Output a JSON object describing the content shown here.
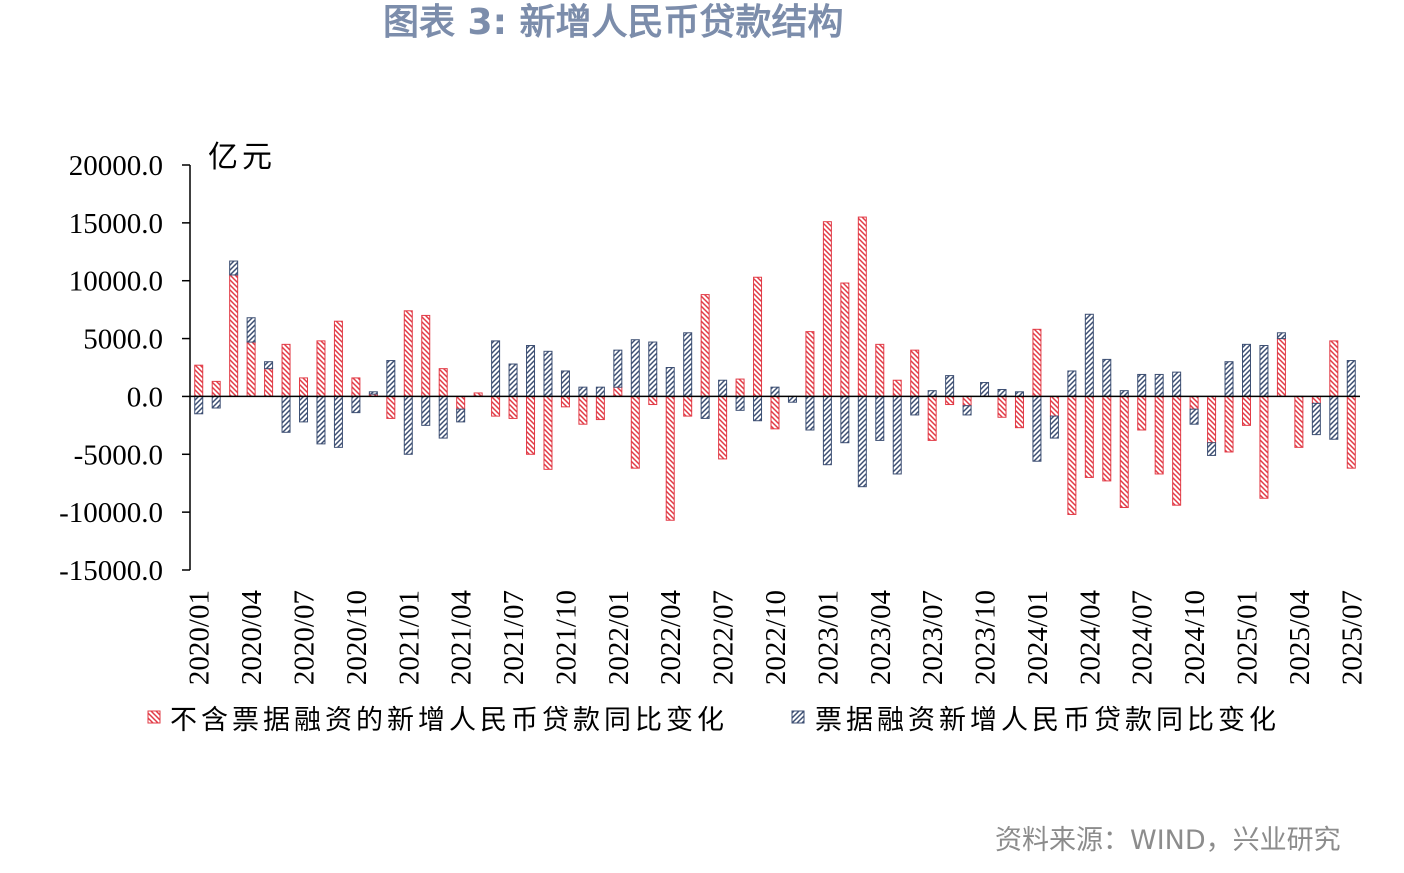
{
  "chart_data": {
    "type": "bar",
    "stacked": true,
    "title": "图表 3: 新增人民币贷款结构",
    "title_color": "#7c8dab",
    "ylabel": "亿元",
    "ylim": [
      -15000,
      20000
    ],
    "yticks": [
      "20000.0",
      "15000.0",
      "10000.0",
      "5000.0",
      "0.0",
      "-5000.0",
      "-10000.0",
      "-15000.0"
    ],
    "grid": false,
    "legend": "bottom",
    "categories": [
      "2020/01",
      "",
      "",
      "2020/04",
      "",
      "",
      "2020/07",
      "",
      "",
      "2020/10",
      "",
      "",
      "2021/01",
      "",
      "",
      "2021/04",
      "",
      "",
      "2021/07",
      "",
      "",
      "2021/10",
      "",
      "",
      "2022/01",
      "",
      "",
      "2022/04",
      "",
      "",
      "2022/07",
      "",
      "",
      "2022/10",
      "",
      "",
      "2023/01",
      "",
      "",
      "2023/04",
      "",
      "",
      "2023/07",
      "",
      "",
      "2023/10",
      "",
      "",
      "2024/01",
      "",
      "",
      "2024/04",
      "",
      "",
      "2024/07",
      "",
      "",
      "2024/10",
      "",
      "",
      "2025/01",
      "",
      "",
      "2025/04",
      "",
      "",
      "2025/07"
    ],
    "series": [
      {
        "name": "不含票据融资的新增人民币贷款同比变化",
        "color": "#e23b46",
        "values": [
          2700,
          1300,
          10500,
          4700,
          2400,
          4500,
          1600,
          4800,
          6500,
          1600,
          200,
          -1900,
          7400,
          7000,
          2400,
          -1100,
          300,
          -1700,
          -1900,
          -5000,
          -6300,
          -900,
          -2400,
          -2000,
          800,
          -6200,
          -700,
          -10700,
          -1700,
          8800,
          -5400,
          1500,
          10300,
          -2800,
          0,
          5600,
          15100,
          9800,
          15500,
          4500,
          1400,
          4000,
          -3800,
          -700,
          -800,
          0,
          -1800,
          -2700,
          5800,
          -1700,
          -10200,
          -7000,
          -7300,
          -9600,
          -2900,
          -6700,
          -9400,
          -1100,
          -4000,
          -4800,
          -2500,
          -8800,
          5000,
          -4400,
          -600,
          4800,
          -6200
        ]
      },
      {
        "name": "票据融资新增人民币贷款同比变化",
        "color": "#3d4f73",
        "values": [
          -1500,
          -1000,
          1200,
          2100,
          600,
          -3100,
          -2200,
          -4100,
          -4400,
          -1400,
          200,
          3100,
          -5000,
          -2500,
          -3600,
          -1100,
          0,
          4800,
          2800,
          4400,
          3900,
          2200,
          800,
          800,
          3200,
          4900,
          4700,
          2500,
          5500,
          -1900,
          1400,
          -1200,
          -2100,
          800,
          -500,
          -2900,
          -5900,
          -4000,
          -7800,
          -3800,
          -6700,
          -1600,
          500,
          1800,
          -800,
          1200,
          600,
          400,
          -5600,
          -1900,
          2200,
          7100,
          3200,
          500,
          1900,
          1900,
          2100,
          -1300,
          -1100,
          3000,
          4500,
          4400,
          500,
          0,
          -2700,
          -3700,
          3100
        ]
      }
    ]
  },
  "source": "资料来源：WIND，兴业研究"
}
